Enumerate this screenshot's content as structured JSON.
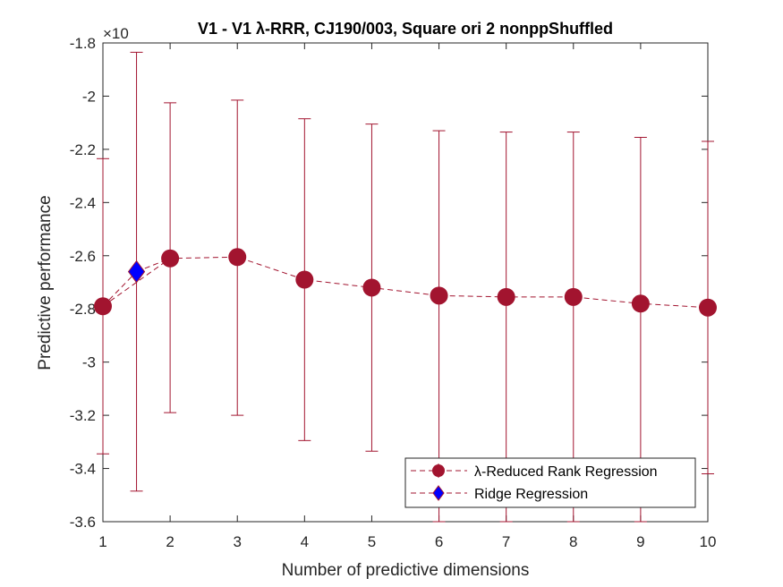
{
  "chart_data": {
    "type": "line",
    "title": "V1 - V1 λ-RRR, CJ190/003, Square ori 2 nonppShuffled",
    "xlabel": "Number of predictive dimensions",
    "ylabel": "Predictive performance",
    "y_exponent_label": "×10",
    "xlim": [
      1,
      10
    ],
    "ylim": [
      -3.6,
      -1.8
    ],
    "xticks": [
      1,
      2,
      3,
      4,
      5,
      6,
      7,
      8,
      9,
      10
    ],
    "yticks": [
      -3.6,
      -3.4,
      -3.2,
      -3.0,
      -2.8,
      -2.6,
      -2.4,
      -2.2,
      -2.0,
      -1.8
    ],
    "ytick_labels": [
      "-3.6",
      "-3.4",
      "-3.2",
      "-3",
      "-2.8",
      "-2.6",
      "-2.4",
      "-2.2",
      "-2",
      "-1.8"
    ],
    "legend_position": "bottom-right",
    "series": [
      {
        "name": "λ-Reduced Rank Regression",
        "color": "#A2142F",
        "marker": "circle",
        "x": [
          1,
          2,
          3,
          4,
          5,
          6,
          7,
          8,
          9,
          10
        ],
        "y": [
          -2.79,
          -2.61,
          -2.605,
          -2.69,
          -2.72,
          -2.75,
          -2.755,
          -2.755,
          -2.78,
          -2.795
        ],
        "err_low": [
          -3.345,
          -3.19,
          -3.2,
          -3.295,
          -3.335,
          -3.6,
          -3.6,
          -3.6,
          -3.6,
          -3.42
        ],
        "err_high": [
          -2.235,
          -2.025,
          -2.015,
          -2.085,
          -2.105,
          -2.13,
          -2.135,
          -2.135,
          -2.155,
          -2.17
        ]
      },
      {
        "name": "Ridge Regression",
        "color": "#0000FF",
        "edge_color": "#A2142F",
        "marker": "diamond",
        "x": [
          1.5
        ],
        "y": [
          -2.66
        ],
        "err_low": [
          -3.485
        ],
        "err_high": [
          -1.835
        ]
      }
    ]
  }
}
